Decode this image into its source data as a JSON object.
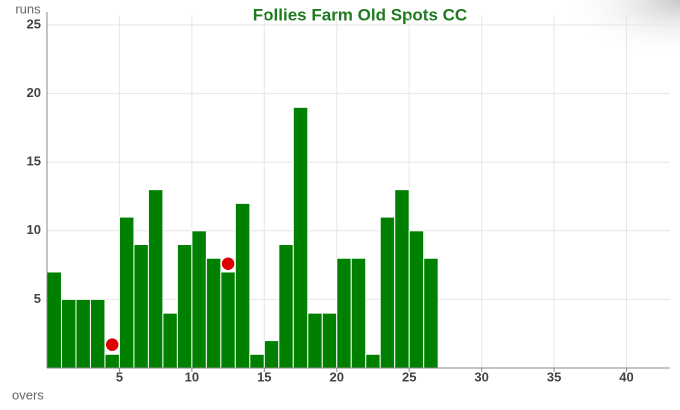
{
  "chart_data": {
    "type": "bar",
    "title": "Follies Farm Old Spots CC",
    "x_label": "overs",
    "y_label": "runs",
    "x": [
      1,
      2,
      3,
      4,
      5,
      6,
      7,
      8,
      9,
      10,
      11,
      12,
      13,
      14,
      15,
      16,
      17,
      18,
      19,
      20,
      21,
      22,
      23,
      24,
      25,
      26,
      27
    ],
    "values": [
      7,
      5,
      5,
      5,
      1,
      11,
      9,
      13,
      4,
      9,
      10,
      8,
      7,
      12,
      1,
      2,
      9,
      19,
      4,
      4,
      8,
      8,
      1,
      11,
      13,
      10,
      8
    ],
    "color": "#008000",
    "wickets": {
      "type": "scatter",
      "color": "#dd0000",
      "x": [
        4.5,
        12.5
      ],
      "values": [
        1.7,
        7.6
      ]
    },
    "xlim": [
      0,
      43
    ],
    "xticks": [
      5,
      10,
      15,
      20,
      25,
      30,
      35,
      40
    ],
    "ylim": [
      0,
      25
    ],
    "yticks": [
      5,
      10,
      15,
      20,
      25
    ],
    "grid": true
  }
}
